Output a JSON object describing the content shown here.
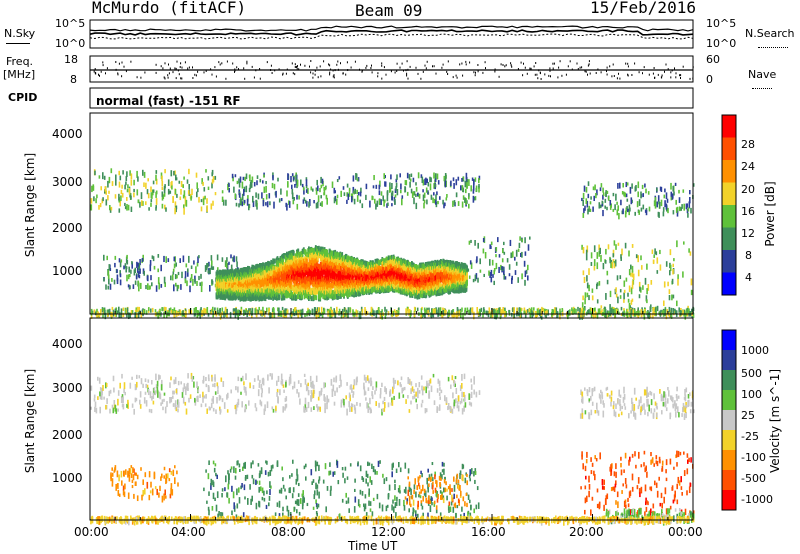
{
  "header": {
    "station": "McMurdo (fitACF)",
    "beam": "Beam 09",
    "date": "15/Feb/2016"
  },
  "top_panels": {
    "nsky_label": "N.Sky",
    "nsearch_label": "N.Search",
    "noise_ticks_left": [
      "10^5",
      "10^0"
    ],
    "noise_ticks_right": [
      "10^5",
      "10^0"
    ],
    "freq_label_1": "Freq.",
    "freq_label_2": "[MHz]",
    "freq_ticks": [
      "18",
      "8"
    ],
    "nave_label": "Nave",
    "nave_ticks": [
      "60",
      "0"
    ],
    "cpid_label": "CPID",
    "cpid_text": "normal (fast) -151 RF"
  },
  "colors": {
    "power_scale": [
      "#0000ff",
      "#2c3f9a",
      "#3f8f5a",
      "#5fc13a",
      "#f2d22a",
      "#ff9000",
      "#ff5000",
      "#ff0000"
    ],
    "velocity_scale": [
      "#ff0000",
      "#ff5000",
      "#ff9000",
      "#f2d22a",
      "#c8c8c8",
      "#5fc13a",
      "#3f8f5a",
      "#2c3f9a",
      "#0000ff"
    ]
  },
  "chart_data": [
    {
      "type": "heatmap",
      "panel": "power",
      "ylabel": "Slant Range [km]",
      "yticks": [
        "4000",
        "3000",
        "2000",
        "1000"
      ],
      "ylim": [
        180,
        4600
      ],
      "xlim": [
        0,
        24
      ],
      "colorbar_label": "Power [dB]",
      "colorbar_ticks": [
        "28",
        "24",
        "20",
        "16",
        "12",
        "8",
        "4"
      ],
      "scatter_bands": [
        {
          "x_start": 0.0,
          "x_end": 5.0,
          "range_low": 2500,
          "range_high": 3400,
          "level": 3
        },
        {
          "x_start": 5.2,
          "x_end": 15.5,
          "range_low": 2600,
          "range_high": 3300,
          "level": 2
        },
        {
          "x_start": 19.5,
          "x_end": 24.0,
          "range_low": 2400,
          "range_high": 3100,
          "level": 2
        },
        {
          "x_start": 0.5,
          "x_end": 6.0,
          "range_low": 800,
          "range_high": 1500,
          "level": 2
        },
        {
          "x_start": 15.0,
          "x_end": 17.5,
          "range_low": 900,
          "range_high": 1900,
          "level": 2
        },
        {
          "x_start": 19.5,
          "x_end": 24.0,
          "range_low": 300,
          "range_high": 1800,
          "level": 3
        },
        {
          "x_start": 0.0,
          "x_end": 24.0,
          "range_low": 200,
          "range_high": 340,
          "level": 3
        }
      ],
      "main_echo": [
        {
          "t": 5.0,
          "low": 600,
          "high": 1150,
          "peak": 18
        },
        {
          "t": 6.0,
          "low": 560,
          "high": 1200,
          "peak": 20
        },
        {
          "t": 7.0,
          "low": 560,
          "high": 1350,
          "peak": 22
        },
        {
          "t": 8.0,
          "low": 580,
          "high": 1600,
          "peak": 28
        },
        {
          "t": 9.0,
          "low": 560,
          "high": 1700,
          "peak": 30
        },
        {
          "t": 10.0,
          "low": 600,
          "high": 1550,
          "peak": 29
        },
        {
          "t": 11.0,
          "low": 700,
          "high": 1350,
          "peak": 28
        },
        {
          "t": 12.0,
          "low": 760,
          "high": 1500,
          "peak": 30
        },
        {
          "t": 13.0,
          "low": 600,
          "high": 1300,
          "peak": 28
        },
        {
          "t": 14.0,
          "low": 700,
          "high": 1400,
          "peak": 26
        },
        {
          "t": 15.0,
          "low": 760,
          "high": 1300,
          "peak": 18
        }
      ]
    },
    {
      "type": "heatmap",
      "panel": "velocity",
      "xlabel": "Time UT",
      "xticks": [
        "00:00",
        "04:00",
        "08:00",
        "12:00",
        "16:00",
        "20:00",
        "00:00"
      ],
      "xlim": [
        0,
        24
      ],
      "ylabel": "Slant Range [km]",
      "yticks": [
        "4000",
        "3000",
        "2000",
        "1000"
      ],
      "ylim": [
        180,
        4600
      ],
      "colorbar_label": "Velocity [m s^-1]",
      "colorbar_ticks": [
        "1000",
        "500",
        "100",
        "25",
        "-25",
        "-100",
        "-500",
        "-1000"
      ],
      "scatter_bands": [
        {
          "x_start": 0.0,
          "x_end": 15.5,
          "range_low": 2600,
          "range_high": 3400,
          "level": 4
        },
        {
          "x_start": 19.5,
          "x_end": 24.0,
          "range_low": 2500,
          "range_high": 3100,
          "level": 4
        },
        {
          "x_start": 0.8,
          "x_end": 3.5,
          "range_low": 700,
          "range_high": 1400,
          "level": 2
        },
        {
          "x_start": 4.5,
          "x_end": 15.5,
          "range_low": 300,
          "range_high": 1500,
          "level": 6
        },
        {
          "x_start": 12.5,
          "x_end": 15.0,
          "range_low": 500,
          "range_high": 1200,
          "level": 2
        },
        {
          "x_start": 19.5,
          "x_end": 24.0,
          "range_low": 350,
          "range_high": 1700,
          "level": 1
        },
        {
          "x_start": 20.5,
          "x_end": 24.0,
          "range_low": 200,
          "range_high": 450,
          "level": 5
        },
        {
          "x_start": 0.0,
          "x_end": 24.0,
          "range_low": 200,
          "range_high": 280,
          "level": 3
        }
      ]
    }
  ]
}
